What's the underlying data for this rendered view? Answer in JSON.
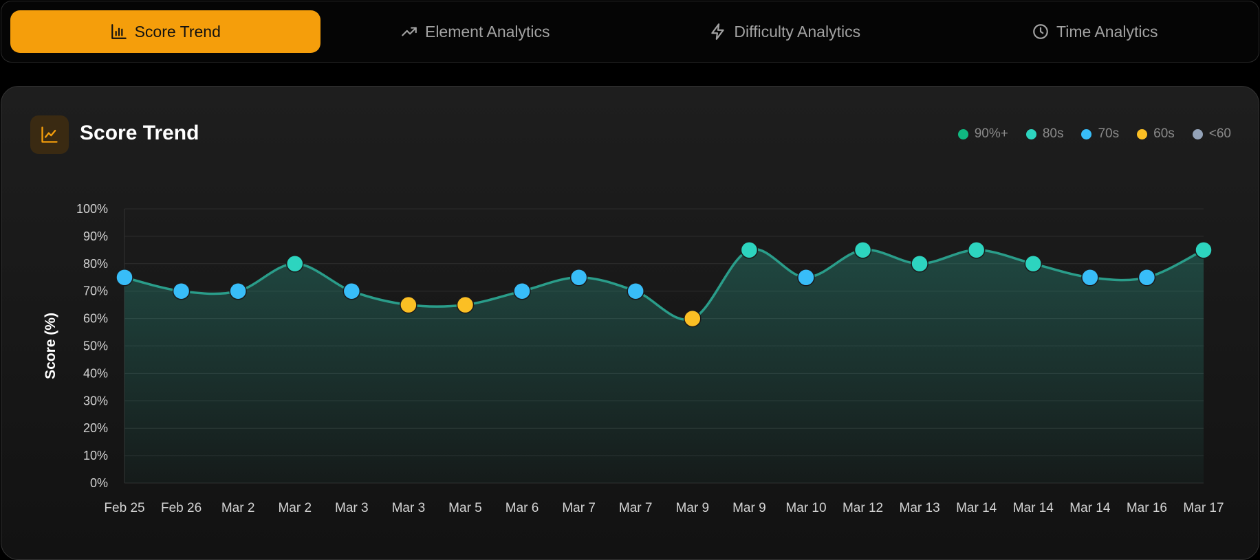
{
  "tabs": [
    {
      "label": "Score Trend",
      "icon": "bar-chart-icon",
      "active": true
    },
    {
      "label": "Element Analytics",
      "icon": "trending-up-icon",
      "active": false
    },
    {
      "label": "Difficulty Analytics",
      "icon": "zap-icon",
      "active": false
    },
    {
      "label": "Time Analytics",
      "icon": "clock-icon",
      "active": false
    }
  ],
  "card": {
    "title": "Score Trend",
    "icon": "line-chart-icon"
  },
  "legend": [
    {
      "label": "90%+",
      "color": "#10b981"
    },
    {
      "label": "80s",
      "color": "#2dd4bf"
    },
    {
      "label": "70s",
      "color": "#38bdf8"
    },
    {
      "label": "60s",
      "color": "#fbbf24"
    },
    {
      "label": "<60",
      "color": "#94a3b8"
    }
  ],
  "chart_data": {
    "type": "area",
    "ylabel": "Score (%)",
    "ylim": [
      0,
      100
    ],
    "yticks": [
      "0%",
      "10%",
      "20%",
      "30%",
      "40%",
      "50%",
      "60%",
      "70%",
      "80%",
      "90%",
      "100%"
    ],
    "grid": true,
    "legend_position": "top-right",
    "line_color": "#2a9d8a",
    "categories": [
      "Feb 25",
      "Feb 26",
      "Mar 2",
      "Mar 2",
      "Mar 3",
      "Mar 3",
      "Mar 5",
      "Mar 6",
      "Mar 7",
      "Mar 7",
      "Mar 9",
      "Mar 9",
      "Mar 10",
      "Mar 12",
      "Mar 13",
      "Mar 14",
      "Mar 14",
      "Mar 14",
      "Mar 16",
      "Mar 17"
    ],
    "values": [
      75,
      70,
      70,
      80,
      70,
      65,
      65,
      70,
      75,
      70,
      60,
      85,
      75,
      85,
      80,
      85,
      80,
      75,
      75,
      85
    ]
  }
}
